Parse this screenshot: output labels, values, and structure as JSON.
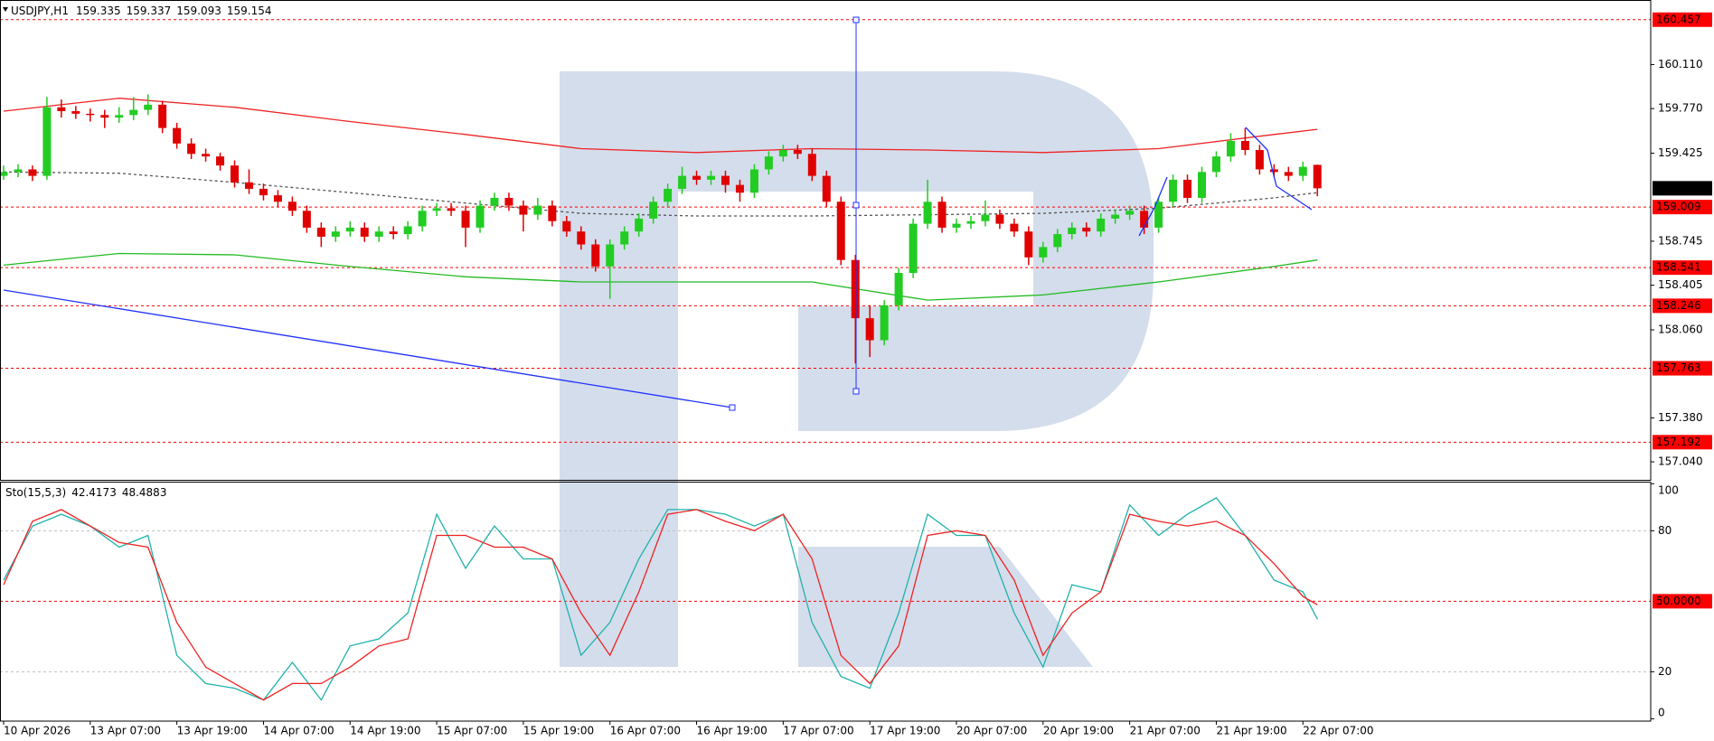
{
  "chart_data": [
    {
      "type": "candlestick",
      "title": "USDJPY,H1",
      "up_color": "#22cc22",
      "down_color": "#e00000",
      "ylim": [
        156.894,
        160.609
      ],
      "yticks": [
        {
          "value": 160.11,
          "label": "160.110"
        },
        {
          "value": 159.77,
          "label": "159.770"
        },
        159.425,
        158.745,
        158.405,
        {
          "value": 158.06,
          "label": "158.060"
        },
        {
          "value": 157.38,
          "label": "157.380"
        },
        {
          "value": 157.04,
          "label": "157.040"
        }
      ],
      "levels": [
        160.457,
        159.009,
        158.541,
        158.246,
        157.763,
        157.192
      ],
      "level_color": "#ff0000",
      "candles": [
        [
          159.25,
          159.33,
          159.22,
          159.28
        ],
        [
          159.28,
          159.34,
          159.24,
          159.3
        ],
        [
          159.3,
          159.33,
          159.21,
          159.25
        ],
        [
          159.25,
          159.86,
          159.22,
          159.78
        ],
        [
          159.78,
          159.84,
          159.7,
          159.75
        ],
        [
          159.75,
          159.79,
          159.69,
          159.73
        ],
        [
          159.73,
          159.77,
          159.67,
          159.72
        ],
        [
          159.72,
          159.76,
          159.62,
          159.7
        ],
        [
          159.7,
          159.78,
          159.66,
          159.72
        ],
        [
          159.72,
          159.86,
          159.68,
          159.76
        ],
        [
          159.76,
          159.88,
          159.72,
          159.8
        ],
        [
          159.8,
          159.83,
          159.58,
          159.62
        ],
        [
          159.62,
          159.66,
          159.46,
          159.5
        ],
        [
          159.5,
          159.54,
          159.38,
          159.42
        ],
        [
          159.42,
          159.46,
          159.36,
          159.4
        ],
        [
          159.4,
          159.43,
          159.29,
          159.33
        ],
        [
          159.33,
          159.37,
          159.16,
          159.2
        ],
        [
          159.2,
          159.3,
          159.11,
          159.15
        ],
        [
          159.15,
          159.19,
          159.06,
          159.1
        ],
        [
          159.1,
          159.14,
          159.01,
          159.05
        ],
        [
          159.05,
          159.09,
          158.94,
          158.98
        ],
        [
          158.98,
          159.02,
          158.81,
          158.85
        ],
        [
          158.85,
          158.89,
          158.7,
          158.78
        ],
        [
          158.78,
          158.86,
          158.74,
          158.82
        ],
        [
          158.82,
          158.9,
          158.78,
          158.85
        ],
        [
          158.85,
          158.89,
          158.74,
          158.78
        ],
        [
          158.78,
          158.86,
          158.74,
          158.82
        ],
        [
          158.82,
          158.86,
          158.76,
          158.8
        ],
        [
          158.8,
          158.9,
          158.76,
          158.86
        ],
        [
          158.86,
          159.02,
          158.82,
          158.98
        ],
        [
          158.98,
          159.04,
          158.94,
          159.0
        ],
        [
          159.0,
          159.04,
          158.94,
          158.98
        ],
        [
          158.98,
          159.02,
          158.7,
          158.85
        ],
        [
          158.85,
          159.06,
          158.81,
          159.02
        ],
        [
          159.02,
          159.12,
          158.98,
          159.08
        ],
        [
          159.08,
          159.12,
          158.98,
          159.02
        ],
        [
          159.02,
          159.06,
          158.82,
          158.95
        ],
        [
          158.95,
          159.08,
          158.91,
          159.02
        ],
        [
          159.02,
          159.06,
          158.86,
          158.9
        ],
        [
          158.9,
          158.94,
          158.78,
          158.82
        ],
        [
          158.82,
          158.86,
          158.68,
          158.72
        ],
        [
          158.72,
          158.76,
          158.51,
          158.55
        ],
        [
          158.55,
          158.76,
          158.3,
          158.72
        ],
        [
          158.72,
          158.86,
          158.68,
          158.82
        ],
        [
          158.82,
          158.96,
          158.78,
          158.92
        ],
        [
          158.92,
          159.09,
          158.88,
          159.05
        ],
        [
          159.05,
          159.19,
          159.01,
          159.15
        ],
        [
          159.15,
          159.32,
          159.11,
          159.25
        ],
        [
          159.25,
          159.29,
          159.18,
          159.22
        ],
        [
          159.22,
          159.29,
          159.18,
          159.25
        ],
        [
          159.25,
          159.29,
          159.12,
          159.18
        ],
        [
          159.18,
          159.22,
          159.05,
          159.12
        ],
        [
          159.12,
          159.34,
          159.08,
          159.3
        ],
        [
          159.3,
          159.44,
          159.26,
          159.4
        ],
        [
          159.4,
          159.49,
          159.36,
          159.45
        ],
        [
          159.45,
          159.49,
          159.38,
          159.42
        ],
        [
          159.42,
          159.46,
          159.21,
          159.25
        ],
        [
          159.25,
          159.29,
          159.01,
          159.05
        ],
        [
          159.05,
          159.09,
          158.56,
          158.6
        ],
        [
          158.6,
          158.64,
          157.8,
          158.15
        ],
        [
          158.15,
          158.25,
          157.85,
          157.98
        ],
        [
          157.98,
          158.29,
          157.94,
          158.25
        ],
        [
          158.25,
          158.54,
          158.21,
          158.5
        ],
        [
          158.5,
          158.92,
          158.46,
          158.88
        ],
        [
          158.88,
          159.22,
          158.84,
          159.05
        ],
        [
          159.05,
          159.09,
          158.81,
          158.85
        ],
        [
          158.85,
          158.92,
          158.81,
          158.88
        ],
        [
          158.88,
          158.94,
          158.84,
          158.9
        ],
        [
          158.9,
          159.06,
          158.86,
          158.95
        ],
        [
          158.95,
          158.99,
          158.84,
          158.88
        ],
        [
          158.88,
          158.92,
          158.78,
          158.82
        ],
        [
          158.82,
          158.86,
          158.56,
          158.62
        ],
        [
          158.62,
          158.74,
          158.58,
          158.7
        ],
        [
          158.7,
          158.84,
          158.66,
          158.8
        ],
        [
          158.8,
          158.89,
          158.76,
          158.85
        ],
        [
          158.85,
          158.89,
          158.78,
          158.82
        ],
        [
          158.82,
          158.96,
          158.78,
          158.92
        ],
        [
          158.92,
          158.99,
          158.88,
          158.95
        ],
        [
          158.95,
          159.02,
          158.91,
          158.98
        ],
        [
          158.98,
          159.02,
          158.8,
          158.85
        ],
        [
          158.85,
          159.09,
          158.81,
          159.05
        ],
        [
          159.05,
          159.26,
          159.01,
          159.22
        ],
        [
          159.22,
          159.26,
          159.04,
          159.08
        ],
        [
          159.08,
          159.32,
          159.04,
          159.28
        ],
        [
          159.28,
          159.44,
          159.24,
          159.4
        ],
        [
          159.4,
          159.58,
          159.36,
          159.52
        ],
        [
          159.52,
          159.62,
          159.41,
          159.45
        ],
        [
          159.45,
          159.49,
          159.26,
          159.3
        ],
        [
          159.3,
          159.34,
          159.24,
          159.28
        ],
        [
          159.28,
          159.32,
          159.21,
          159.25
        ],
        [
          159.25,
          159.36,
          159.21,
          159.32
        ],
        [
          159.335,
          159.337,
          159.093,
          159.154
        ]
      ],
      "lines": [
        {
          "color": "#ee2222",
          "dash": "none",
          "x": [
            0,
            8,
            16,
            24,
            32,
            40,
            48,
            56,
            64,
            72,
            80,
            88,
            91
          ],
          "values": [
            159.75,
            159.85,
            159.78,
            159.67,
            159.57,
            159.46,
            159.43,
            159.46,
            159.45,
            159.43,
            159.46,
            159.57,
            159.61
          ]
        },
        {
          "color": "#555555",
          "dash": "3 3",
          "x": [
            0,
            8,
            16,
            24,
            32,
            40,
            48,
            56,
            64,
            72,
            80,
            88,
            91
          ],
          "values": [
            159.28,
            159.27,
            159.2,
            159.12,
            159.04,
            158.96,
            158.94,
            158.94,
            158.95,
            158.96,
            159.0,
            159.08,
            159.12
          ]
        },
        {
          "color": "#22bb22",
          "dash": "none",
          "x": [
            0,
            8,
            16,
            24,
            32,
            40,
            48,
            56,
            64,
            72,
            80,
            88,
            91
          ],
          "values": [
            158.56,
            158.65,
            158.64,
            158.55,
            158.47,
            158.43,
            158.43,
            158.43,
            158.29,
            158.33,
            158.43,
            158.55,
            158.6
          ]
        }
      ]
    },
    {
      "type": "line",
      "title": "Sto(15,5,3)",
      "xlim": [
        -0.25,
        114.09
      ],
      "xticks": [
        {
          "value": 0,
          "label": "10 Apr 2026"
        },
        {
          "value": 6,
          "label": "13 Apr 07:00"
        },
        {
          "value": 12,
          "label": "13 Apr 19:00"
        },
        {
          "value": 18,
          "label": "14 Apr 07:00"
        },
        {
          "value": 24,
          "label": "14 Apr 19:00"
        },
        {
          "value": 30,
          "label": "15 Apr 07:00"
        },
        {
          "value": 36,
          "label": "15 Apr 19:00"
        },
        {
          "value": 42,
          "label": "16 Apr 07:00"
        },
        {
          "value": 48,
          "label": "16 Apr 19:00"
        },
        {
          "value": 54,
          "label": "17 Apr 07:00"
        },
        {
          "value": 60,
          "label": "17 Apr 19:00"
        },
        {
          "value": 66,
          "label": "20 Apr 07:00"
        },
        {
          "value": 72,
          "label": "20 Apr 19:00"
        },
        {
          "value": 78,
          "label": "21 Apr 07:00"
        },
        {
          "value": 84,
          "label": "21 Apr 19:00"
        },
        {
          "value": 90,
          "label": "22 Apr 07:00"
        }
      ],
      "ylim": [
        -1,
        100.5
      ],
      "yticks": [
        100,
        80,
        20,
        0
      ],
      "grid": [
        80,
        20
      ],
      "levels": [
        {
          "value": 50,
          "label": "50.0000"
        }
      ],
      "level_color": "#ff0000",
      "x": [
        0,
        2,
        4,
        6,
        8,
        10,
        12,
        14,
        16,
        18,
        20,
        22,
        24,
        26,
        28,
        30,
        32,
        34,
        36,
        38,
        40,
        42,
        44,
        46,
        48,
        50,
        52,
        54,
        56,
        58,
        60,
        62,
        64,
        66,
        68,
        70,
        72,
        74,
        76,
        78,
        80,
        82,
        84,
        86,
        88,
        90,
        91
      ],
      "series": [
        {
          "color": "#20b2aa",
          "values": [
            59,
            82,
            87,
            82,
            73,
            78,
            27,
            15,
            13,
            8,
            24,
            8,
            31,
            34,
            45,
            87,
            64,
            82,
            68,
            68,
            27,
            41,
            68,
            89,
            89,
            87,
            82,
            87,
            41,
            18,
            13,
            45,
            87,
            78,
            78,
            45,
            22,
            57,
            54,
            91,
            78,
            87,
            94,
            78,
            59,
            54,
            42.4173
          ]
        },
        {
          "color": "#ee2222",
          "values": [
            57,
            84,
            89,
            82,
            75,
            73,
            41,
            22,
            15,
            8,
            15,
            15,
            22,
            31,
            34,
            78,
            78,
            73,
            73,
            68,
            45,
            27,
            54,
            87,
            89,
            84,
            80,
            87,
            68,
            27,
            15,
            31,
            78,
            80,
            78,
            59,
            27,
            45,
            54,
            87,
            84,
            82,
            84,
            78,
            66,
            52,
            48.4883
          ]
        }
      ]
    }
  ]
}
